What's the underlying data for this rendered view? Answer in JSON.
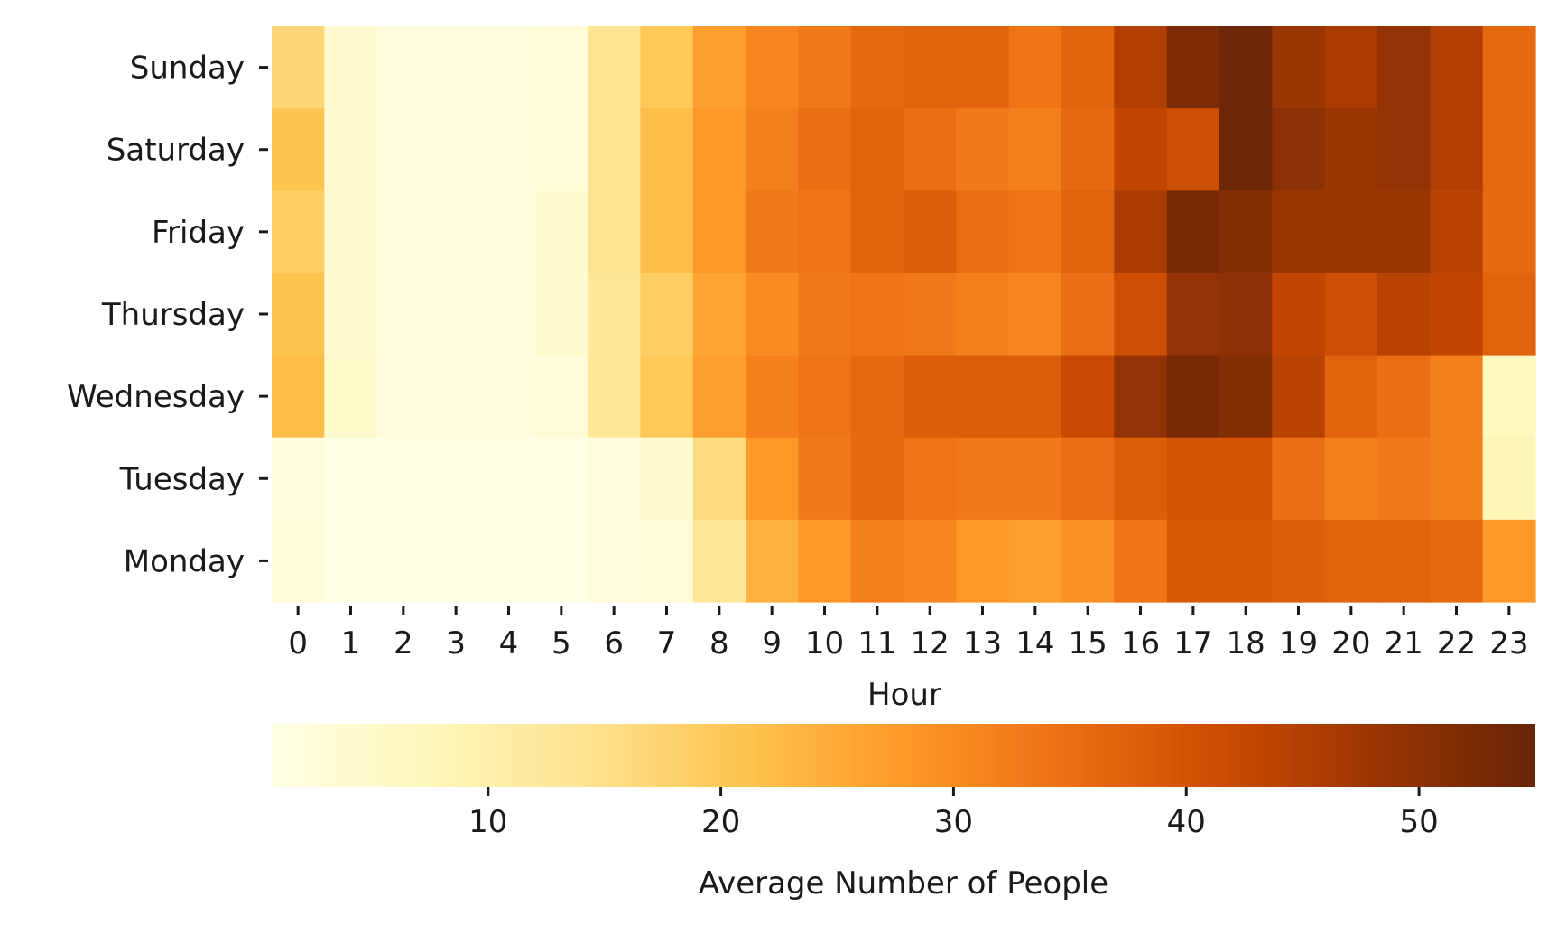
{
  "chart_data": {
    "type": "heatmap",
    "title": "",
    "xlabel": "Hour",
    "ylabel": "",
    "x": [
      "0",
      "1",
      "2",
      "3",
      "4",
      "5",
      "6",
      "7",
      "8",
      "9",
      "10",
      "11",
      "12",
      "13",
      "14",
      "15",
      "16",
      "17",
      "18",
      "19",
      "20",
      "21",
      "22",
      "23"
    ],
    "y": [
      "Sunday",
      "Saturday",
      "Friday",
      "Thursday",
      "Wednesday",
      "Tuesday",
      "Monday"
    ],
    "values": [
      [
        17,
        4,
        2,
        2,
        2,
        3,
        14,
        20,
        27,
        31,
        33,
        36,
        37,
        37,
        34,
        37,
        45,
        52,
        54,
        48,
        46,
        49,
        45,
        36
      ],
      [
        21,
        4,
        2,
        2,
        2,
        3,
        14,
        22,
        28,
        32,
        35,
        37,
        35,
        33,
        32,
        36,
        43,
        41,
        54,
        50,
        48,
        49,
        45,
        36
      ],
      [
        19,
        4,
        2,
        2,
        2,
        4,
        14,
        22,
        28,
        33,
        34,
        37,
        38,
        35,
        34,
        37,
        46,
        53,
        51,
        48,
        48,
        48,
        44,
        36
      ],
      [
        21,
        4,
        2,
        2,
        2,
        4,
        13,
        19,
        26,
        30,
        33,
        34,
        33,
        32,
        31,
        35,
        41,
        49,
        50,
        43,
        41,
        44,
        43,
        37
      ],
      [
        22,
        5,
        2,
        2,
        2,
        3,
        13,
        20,
        27,
        32,
        34,
        36,
        38,
        38,
        38,
        42,
        49,
        53,
        51,
        44,
        37,
        35,
        32,
        7
      ],
      [
        2,
        1,
        1,
        1,
        1,
        1,
        2,
        4,
        16,
        28,
        33,
        36,
        34,
        33,
        33,
        35,
        38,
        40,
        40,
        35,
        32,
        33,
        32,
        8
      ],
      [
        3,
        1,
        1,
        1,
        1,
        1,
        2,
        3,
        13,
        24,
        28,
        32,
        31,
        28,
        27,
        29,
        34,
        39,
        39,
        38,
        37,
        37,
        36,
        28
      ]
    ],
    "colorbar": {
      "label": "Average Number of People",
      "min": 0.7,
      "max": 55,
      "ticks": [
        10,
        20,
        30,
        40,
        50
      ],
      "orientation": "horizontal",
      "position": "bottom"
    },
    "colormap": {
      "name": "YlOrBr",
      "stops": [
        "#ffffe5",
        "#fff7bc",
        "#fee391",
        "#fec44f",
        "#fe9929",
        "#ec7014",
        "#cc4c02",
        "#993404",
        "#662506"
      ]
    },
    "grid": false,
    "legend": "none"
  }
}
